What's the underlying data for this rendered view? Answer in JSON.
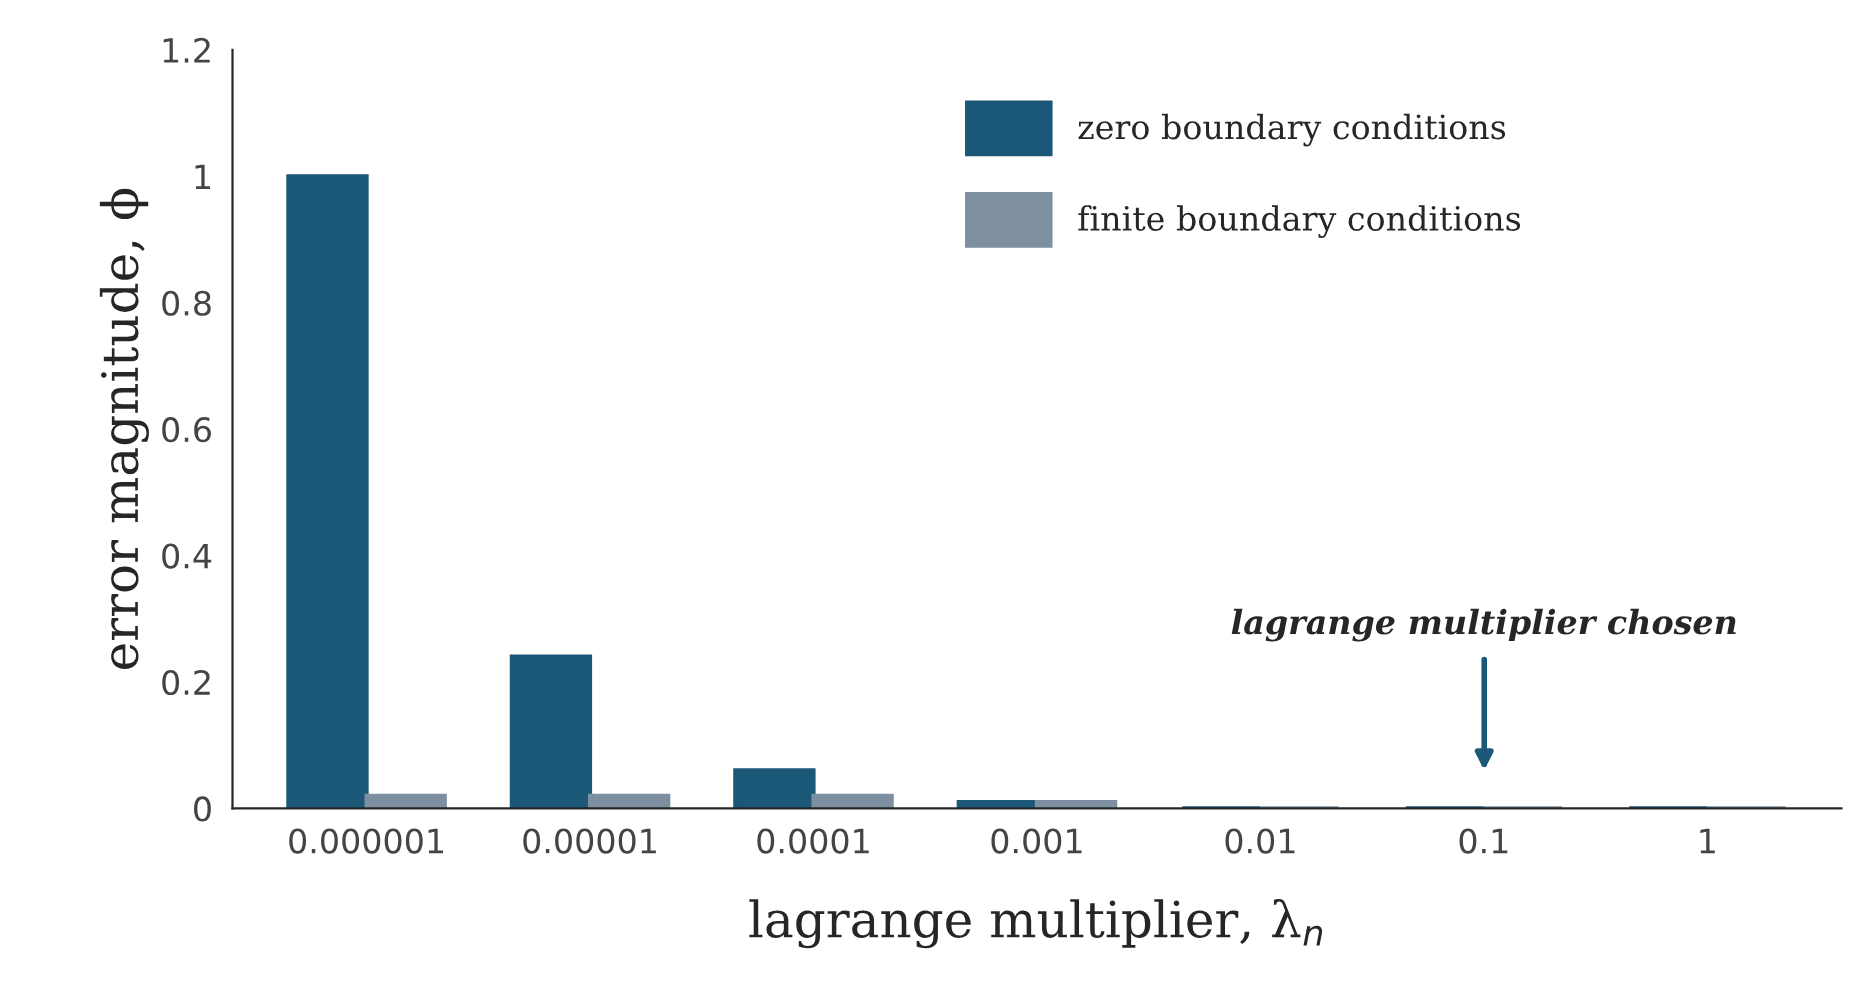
{
  "chart_data": {
    "type": "bar",
    "xlabel": "lagrange multiplier, λ$_{n}$",
    "ylabel": "error magnitude, ϕ",
    "categories": [
      "0.000001",
      "0.00001",
      "0.0001",
      "0.001",
      "0.01",
      "0.1",
      "1"
    ],
    "series": [
      {
        "name": "zero boundary conditions",
        "color": "#1b5878",
        "values": [
          1.0,
          0.24,
          0.06,
          0.01,
          0,
          0,
          0
        ]
      },
      {
        "name": "finite boundary conditions",
        "color": "#7d8fa0",
        "values": [
          0.02,
          0.02,
          0.02,
          0.01,
          0,
          0,
          0
        ]
      }
    ],
    "ylim": [
      0,
      1.2
    ],
    "yticks": [
      0,
      0.2,
      0.4,
      0.6,
      0.8,
      1,
      1.2
    ],
    "grid": false,
    "legend": "top right",
    "annotations": [
      "lagrange multiplier chosen"
    ]
  }
}
